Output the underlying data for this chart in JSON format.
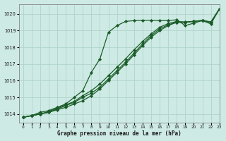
{
  "title": "Graphe pression niveau de la mer (hPa)",
  "bg_color": "#ceeae4",
  "grid_color": "#afd4cc",
  "line_color": "#1a5c28",
  "xlim": [
    -0.5,
    23
  ],
  "ylim": [
    1013.5,
    1020.6
  ],
  "yticks": [
    1014,
    1015,
    1016,
    1017,
    1018,
    1019,
    1020
  ],
  "xticks": [
    0,
    1,
    2,
    3,
    4,
    5,
    6,
    7,
    8,
    9,
    10,
    11,
    12,
    13,
    14,
    15,
    16,
    17,
    18,
    19,
    20,
    21,
    22,
    23
  ],
  "series": [
    {
      "x": [
        0,
        1,
        2,
        3,
        4,
        5,
        6,
        7,
        8,
        9,
        10,
        11,
        12,
        13,
        14,
        15,
        16,
        17,
        18,
        19,
        20,
        21,
        22,
        23
      ],
      "y": [
        1013.8,
        1013.9,
        1014.1,
        1014.2,
        1014.4,
        1014.6,
        1015.0,
        1015.4,
        1016.5,
        1017.3,
        1018.9,
        1019.3,
        1019.55,
        1019.6,
        1019.62,
        1019.62,
        1019.6,
        1019.6,
        1019.65,
        1019.3,
        1019.45,
        1019.6,
        1019.4,
        1020.3
      ],
      "marker": "D",
      "markersize": 2.2,
      "linewidth": 0.9
    },
    {
      "x": [
        0,
        1,
        2,
        3,
        4,
        5,
        6,
        7,
        8,
        9,
        10,
        11,
        12,
        13,
        14,
        15,
        16,
        17,
        18,
        19,
        20,
        21,
        22,
        23
      ],
      "y": [
        1013.8,
        1013.9,
        1014.0,
        1014.1,
        1014.25,
        1014.4,
        1014.6,
        1014.8,
        1015.1,
        1015.5,
        1016.0,
        1016.5,
        1017.0,
        1017.55,
        1018.1,
        1018.6,
        1019.0,
        1019.3,
        1019.5,
        1019.5,
        1019.55,
        1019.6,
        1019.5,
        1020.3
      ],
      "marker": "D",
      "markersize": 2.2,
      "linewidth": 0.9
    },
    {
      "x": [
        0,
        1,
        2,
        3,
        4,
        5,
        6,
        7,
        8,
        9,
        10,
        11,
        12,
        13,
        14,
        15,
        16,
        17,
        18,
        19,
        20,
        21,
        22,
        23
      ],
      "y": [
        1013.8,
        1013.9,
        1014.0,
        1014.1,
        1014.3,
        1014.5,
        1014.7,
        1015.0,
        1015.25,
        1015.6,
        1016.1,
        1016.6,
        1017.1,
        1017.65,
        1018.2,
        1018.7,
        1019.1,
        1019.35,
        1019.5,
        1019.5,
        1019.55,
        1019.6,
        1019.5,
        1020.3
      ],
      "marker": "D",
      "markersize": 2.2,
      "linewidth": 0.9
    },
    {
      "x": [
        0,
        1,
        2,
        3,
        4,
        5,
        6,
        7,
        8,
        9,
        10,
        11,
        12,
        13,
        14,
        15,
        16,
        17,
        18,
        19,
        20,
        21,
        22,
        23
      ],
      "y": [
        1013.8,
        1013.9,
        1014.0,
        1014.15,
        1014.35,
        1014.55,
        1014.75,
        1015.1,
        1015.4,
        1015.8,
        1016.3,
        1016.8,
        1017.3,
        1017.85,
        1018.35,
        1018.8,
        1019.2,
        1019.42,
        1019.55,
        1019.52,
        1019.56,
        1019.62,
        1019.52,
        1020.3
      ],
      "marker": "D",
      "markersize": 2.2,
      "linewidth": 0.9
    }
  ]
}
